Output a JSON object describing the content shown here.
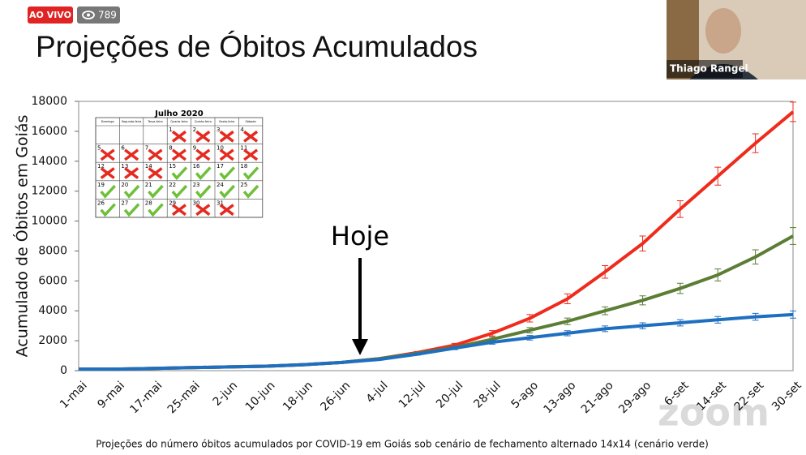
{
  "stream": {
    "live": "AO VIVO",
    "viewers": "789",
    "speaker": "Thiago Rangel",
    "watermark": "zoom"
  },
  "slide_title": "Projeções de Óbitos Acumulados",
  "caption": "Projeções do número óbitos acumulados por COVID-19 em Goiás sob cenário de fechamento alternado 14x14 (cenário verde)",
  "calendar": {
    "title": "Julho 2020",
    "weekdays": [
      "Domingo",
      "Segunda-feira",
      "Terça-feira",
      "Quarta-feira",
      "Quinta-feira",
      "Sexta-feira",
      "Sábado"
    ],
    "days": [
      "1",
      "2",
      "3",
      "4",
      "5",
      "6",
      "7",
      "8",
      "9",
      "10",
      "11",
      "12",
      "13",
      "14",
      "15",
      "16",
      "17",
      "18",
      "19",
      "20",
      "21",
      "22",
      "23",
      "24",
      "25",
      "26",
      "27",
      "28",
      "29",
      "30",
      "31"
    ],
    "status": [
      "x",
      "x",
      "x",
      "x",
      "x",
      "x",
      "x",
      "x",
      "x",
      "x",
      "x",
      "x",
      "x",
      "x",
      "v",
      "v",
      "v",
      "v",
      "v",
      "v",
      "v",
      "v",
      "v",
      "v",
      "v",
      "v",
      "v",
      "v",
      "x",
      "x",
      "x"
    ]
  },
  "chart_data": {
    "type": "line",
    "ylabel": "Acumulado de Óbitos em Goiás",
    "annotation": "Hoje",
    "categories": [
      "1-mai",
      "9-mai",
      "17-mai",
      "25-mai",
      "2-jun",
      "10-jun",
      "18-jun",
      "26-jun",
      "4-jul",
      "12-jul",
      "20-jul",
      "28-jul",
      "5-ago",
      "13-ago",
      "21-ago",
      "29-ago",
      "6-set",
      "14-set",
      "22-set",
      "30-set"
    ],
    "ylim": [
      0,
      18000
    ],
    "yticks": [
      0,
      2000,
      4000,
      6000,
      8000,
      10000,
      12000,
      14000,
      16000,
      18000
    ],
    "series": [
      {
        "color": "#ee2b1c",
        "values": [
          100,
          100,
          150,
          200,
          250,
          300,
          400,
          550,
          800,
          1200,
          1700,
          2500,
          3500,
          4800,
          6600,
          8500,
          10800,
          13000,
          15200,
          17300
        ],
        "errors": [
          0,
          0,
          0,
          0,
          0,
          0,
          0,
          0,
          50,
          80,
          120,
          180,
          250,
          330,
          420,
          500,
          560,
          600,
          630,
          650
        ]
      },
      {
        "color": "#5b7d34",
        "values": [
          100,
          100,
          150,
          200,
          250,
          300,
          400,
          550,
          800,
          1150,
          1550,
          2100,
          2700,
          3300,
          4000,
          4700,
          5500,
          6400,
          7600,
          9000
        ],
        "errors": [
          0,
          0,
          0,
          0,
          0,
          0,
          0,
          0,
          50,
          70,
          100,
          140,
          180,
          220,
          260,
          300,
          340,
          400,
          480,
          560
        ]
      },
      {
        "color": "#1f6fc0",
        "values": [
          100,
          100,
          150,
          200,
          250,
          300,
          400,
          550,
          750,
          1100,
          1500,
          1900,
          2200,
          2500,
          2800,
          3000,
          3200,
          3400,
          3600,
          3750
        ],
        "errors": [
          0,
          0,
          0,
          0,
          0,
          0,
          0,
          0,
          50,
          70,
          100,
          130,
          150,
          170,
          190,
          200,
          210,
          220,
          230,
          240
        ]
      }
    ]
  }
}
